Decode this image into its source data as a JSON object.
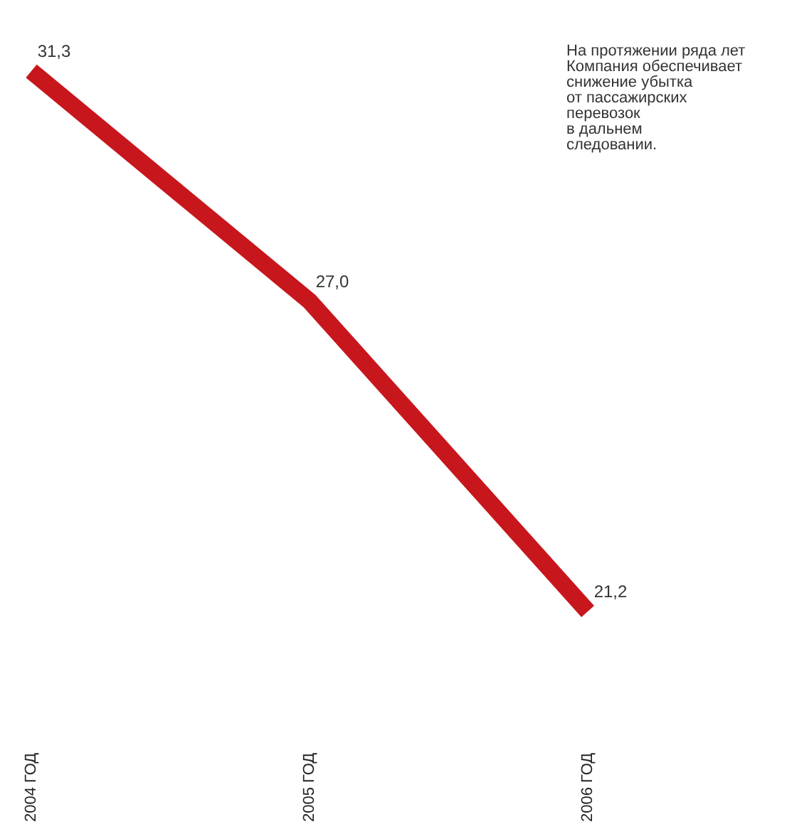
{
  "chart_data": {
    "type": "line",
    "categories": [
      "2004 ГОД",
      "2005 ГОД",
      "2006 ГОД"
    ],
    "series": [
      {
        "color": "#c8161d",
        "values": [
          31.3,
          27.0,
          21.2
        ],
        "value_labels": [
          "31,3",
          "27,0",
          "21,2"
        ]
      }
    ],
    "grid": false,
    "marker": "none",
    "line_style": "solid",
    "tick_labels": "x",
    "annotations": [
      "На протяжении ряда лет\nКомпания обеспечивает\nснижение убытка\nот пассажирских\nперевозок\nв дальнем\nследовании."
    ]
  }
}
